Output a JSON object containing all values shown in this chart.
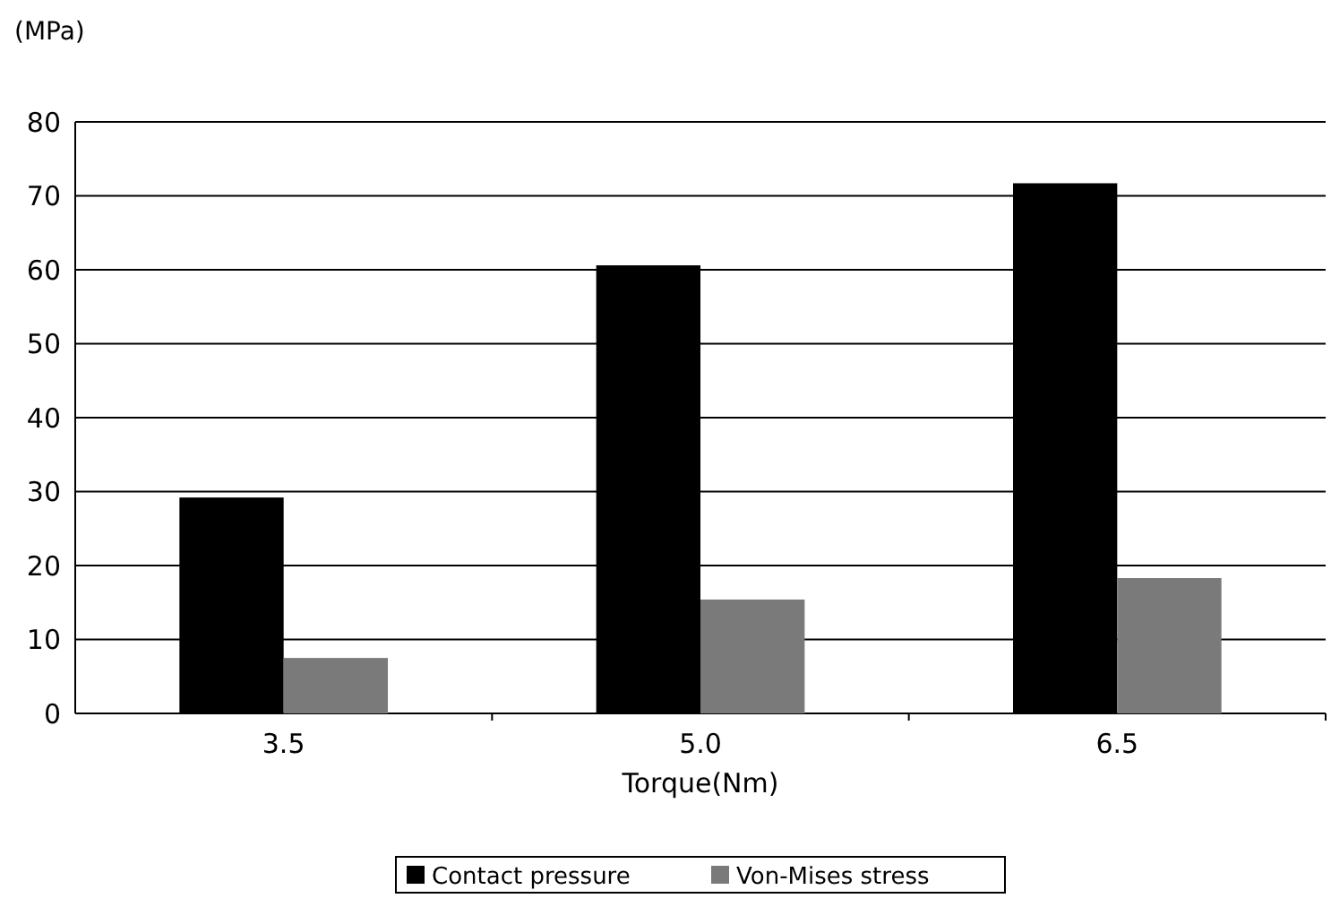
{
  "chart_data": {
    "type": "bar",
    "ylabel": "(MPa)",
    "xlabel": "Torque(Nm)",
    "categories": [
      "3.5",
      "5.0",
      "6.5"
    ],
    "series": [
      {
        "name": "Contact pressure",
        "color": "#000000",
        "values": [
          29.2,
          60.6,
          71.7
        ]
      },
      {
        "name": "Von-Mises stress",
        "color": "#7a7a7a",
        "values": [
          7.5,
          15.4,
          18.3
        ]
      }
    ],
    "ylim": [
      0,
      80
    ],
    "yticks": [
      0,
      10,
      20,
      30,
      40,
      50,
      60,
      70,
      80
    ],
    "grid": "y",
    "legend": "bottom"
  }
}
